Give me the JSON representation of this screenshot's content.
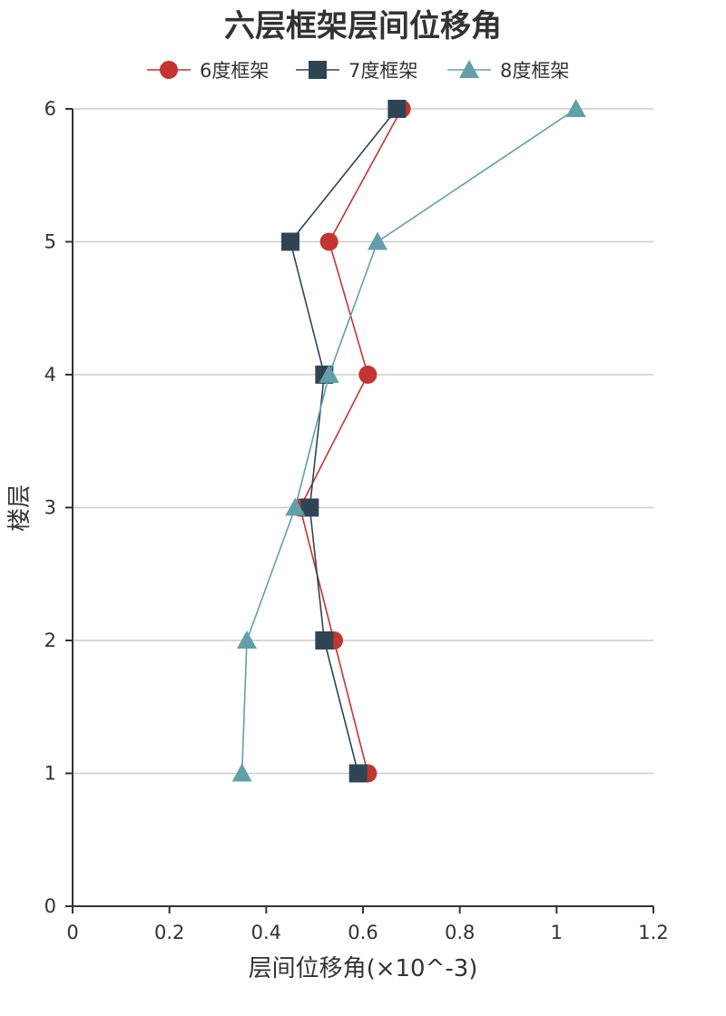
{
  "chart_data": {
    "type": "line",
    "title": "六层框架层间位移角",
    "xlabel": "层间位移角(×10^-3)",
    "ylabel": "楼层",
    "xlim": [
      0,
      1.2
    ],
    "ylim": [
      0,
      6
    ],
    "x_ticks": [
      "0",
      "0.2",
      "0.4",
      "0.6",
      "0.8",
      "1",
      "1.2"
    ],
    "y_ticks": [
      "0",
      "1",
      "2",
      "3",
      "4",
      "5",
      "6"
    ],
    "grid": "horizontal",
    "legend_position": "top-center",
    "series": [
      {
        "name": "6度框架",
        "color": "#c23531",
        "marker": "circle",
        "points": [
          {
            "x": 0.61,
            "y": 1
          },
          {
            "x": 0.54,
            "y": 2
          },
          {
            "x": 0.47,
            "y": 3
          },
          {
            "x": 0.61,
            "y": 4
          },
          {
            "x": 0.53,
            "y": 5
          },
          {
            "x": 0.68,
            "y": 6
          }
        ]
      },
      {
        "name": "7度框架",
        "color": "#2f4554",
        "marker": "square",
        "points": [
          {
            "x": 0.59,
            "y": 1
          },
          {
            "x": 0.52,
            "y": 2
          },
          {
            "x": 0.49,
            "y": 3
          },
          {
            "x": 0.52,
            "y": 4
          },
          {
            "x": 0.45,
            "y": 5
          },
          {
            "x": 0.67,
            "y": 6
          }
        ]
      },
      {
        "name": "8度框架",
        "color": "#61a0a8",
        "marker": "triangle",
        "points": [
          {
            "x": 0.35,
            "y": 1
          },
          {
            "x": 0.36,
            "y": 2
          },
          {
            "x": 0.46,
            "y": 3
          },
          {
            "x": 0.53,
            "y": 4
          },
          {
            "x": 0.63,
            "y": 5
          },
          {
            "x": 1.04,
            "y": 6
          }
        ]
      }
    ]
  }
}
